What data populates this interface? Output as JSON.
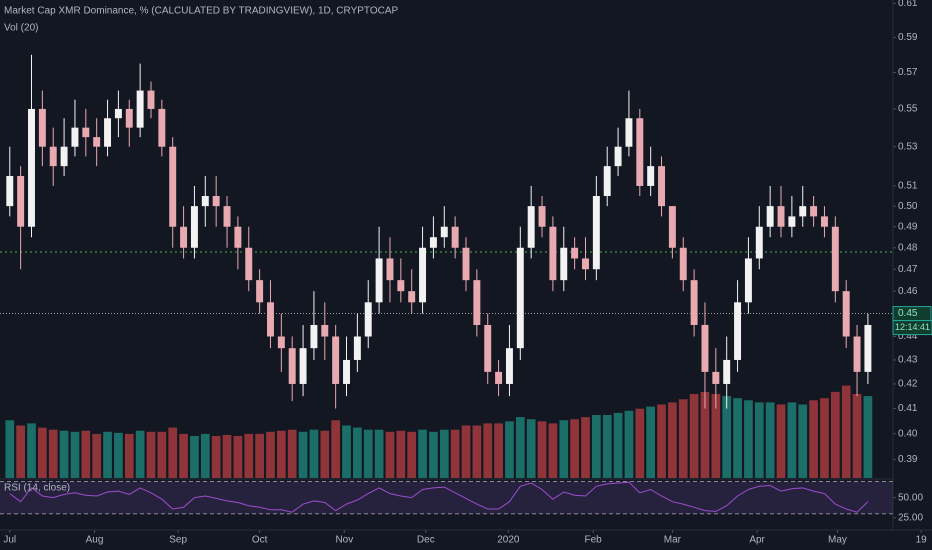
{
  "chart_data": [
    {
      "type": "candlestick",
      "title": "Market Cap XMR Dominance, % (CALCULATED BY TRADINGVIEW), 1D, CRYPTOCAP",
      "volume_label": "Vol (20)",
      "log_scale": true,
      "ylim": [
        0.383,
        0.612
      ],
      "yticks": [
        0.61,
        0.59,
        0.57,
        0.55,
        0.53,
        0.51,
        {
          "value": 0.5,
          "label": "0.50"
        },
        0.49,
        0.48,
        0.47,
        0.46,
        0.44,
        0.43,
        0.42,
        0.41,
        {
          "value": 0.4,
          "label": "0.40"
        },
        0.39
      ],
      "xlim": [
        -0.9,
        84.9
      ],
      "xticks": [
        {
          "value": 0,
          "label": "Jul"
        },
        {
          "value": 7.8,
          "label": "Aug"
        },
        {
          "value": 15.5,
          "label": "Sep"
        },
        {
          "value": 23,
          "label": "Oct"
        },
        {
          "value": 30.8,
          "label": "Nov"
        },
        {
          "value": 38.3,
          "label": "Dec"
        },
        {
          "value": 45.9,
          "label": "2020"
        },
        {
          "value": 53.7,
          "label": "Feb"
        },
        {
          "value": 61,
          "label": "Mar"
        },
        {
          "value": 68.8,
          "label": "Apr"
        },
        {
          "value": 76.2,
          "label": "May"
        },
        {
          "value": 83.9,
          "label": "19"
        }
      ],
      "last_price": 0.45,
      "countdown": "12:14:41",
      "level_line": 0.478,
      "up_color": "#f2f2f2",
      "down_color": "#e9a9b1",
      "volume_up_color": "#1f7f76",
      "volume_down_color": "#a63a3d",
      "vlim": [
        0,
        100
      ],
      "open": [
        0.5,
        0.515,
        0.49,
        0.55,
        0.53,
        0.52,
        0.53,
        0.54,
        0.535,
        0.53,
        0.545,
        0.55,
        0.54,
        0.56,
        0.55,
        0.53,
        0.49,
        0.48,
        0.5,
        0.505,
        0.5,
        0.49,
        0.48,
        0.465,
        0.455,
        0.44,
        0.435,
        0.42,
        0.435,
        0.445,
        0.44,
        0.42,
        0.43,
        0.44,
        0.455,
        0.475,
        0.465,
        0.46,
        0.455,
        0.48,
        0.485,
        0.49,
        0.48,
        0.465,
        0.445,
        0.425,
        0.42,
        0.435,
        0.48,
        0.5,
        0.49,
        0.465,
        0.48,
        0.475,
        0.47,
        0.505,
        0.52,
        0.53,
        0.545,
        0.51,
        0.52,
        0.5,
        0.48,
        0.465,
        0.445,
        0.425,
        0.42,
        0.43,
        0.455,
        0.475,
        0.49,
        0.5,
        0.49,
        0.495,
        0.5,
        0.495,
        0.49,
        0.46,
        0.44,
        0.425
      ],
      "high": [
        0.53,
        0.52,
        0.58,
        0.56,
        0.54,
        0.545,
        0.555,
        0.55,
        0.545,
        0.555,
        0.56,
        0.555,
        0.575,
        0.565,
        0.555,
        0.535,
        0.5,
        0.51,
        0.515,
        0.515,
        0.505,
        0.495,
        0.49,
        0.47,
        0.465,
        0.45,
        0.44,
        0.445,
        0.46,
        0.455,
        0.445,
        0.44,
        0.45,
        0.465,
        0.49,
        0.485,
        0.475,
        0.47,
        0.49,
        0.495,
        0.5,
        0.495,
        0.485,
        0.47,
        0.45,
        0.43,
        0.445,
        0.49,
        0.51,
        0.505,
        0.495,
        0.49,
        0.485,
        0.485,
        0.515,
        0.53,
        0.54,
        0.56,
        0.55,
        0.53,
        0.525,
        0.5,
        0.485,
        0.47,
        0.455,
        0.435,
        0.44,
        0.465,
        0.485,
        0.5,
        0.51,
        0.51,
        0.505,
        0.51,
        0.505,
        0.5,
        0.495,
        0.465,
        0.445,
        0.45
      ],
      "low": [
        0.495,
        0.47,
        0.485,
        0.52,
        0.51,
        0.515,
        0.525,
        0.525,
        0.52,
        0.525,
        0.535,
        0.53,
        0.535,
        0.545,
        0.525,
        0.48,
        0.475,
        0.475,
        0.49,
        0.49,
        0.48,
        0.47,
        0.46,
        0.45,
        0.435,
        0.425,
        0.413,
        0.415,
        0.43,
        0.43,
        0.41,
        0.415,
        0.425,
        0.435,
        0.45,
        0.455,
        0.455,
        0.45,
        0.45,
        0.475,
        0.48,
        0.475,
        0.46,
        0.44,
        0.42,
        0.415,
        0.415,
        0.43,
        0.475,
        0.485,
        0.46,
        0.46,
        0.47,
        0.465,
        0.465,
        0.5,
        0.515,
        0.525,
        0.505,
        0.505,
        0.495,
        0.475,
        0.46,
        0.44,
        0.41,
        0.41,
        0.41,
        0.425,
        0.45,
        0.47,
        0.485,
        0.485,
        0.485,
        0.49,
        0.49,
        0.485,
        0.455,
        0.435,
        0.415,
        0.42
      ],
      "close": [
        0.515,
        0.49,
        0.55,
        0.53,
        0.52,
        0.53,
        0.54,
        0.535,
        0.53,
        0.545,
        0.55,
        0.54,
        0.56,
        0.55,
        0.53,
        0.49,
        0.48,
        0.5,
        0.505,
        0.5,
        0.49,
        0.48,
        0.465,
        0.455,
        0.44,
        0.435,
        0.42,
        0.435,
        0.445,
        0.44,
        0.42,
        0.43,
        0.44,
        0.455,
        0.475,
        0.465,
        0.46,
        0.455,
        0.48,
        0.485,
        0.49,
        0.48,
        0.465,
        0.445,
        0.425,
        0.42,
        0.435,
        0.48,
        0.5,
        0.49,
        0.465,
        0.48,
        0.475,
        0.47,
        0.505,
        0.52,
        0.53,
        0.545,
        0.51,
        0.52,
        0.5,
        0.48,
        0.465,
        0.445,
        0.425,
        0.42,
        0.43,
        0.455,
        0.475,
        0.49,
        0.5,
        0.49,
        0.495,
        0.5,
        0.495,
        0.49,
        0.46,
        0.44,
        0.425,
        0.445
      ],
      "volume": [
        55,
        50,
        52,
        48,
        46,
        45,
        44,
        45,
        42,
        44,
        43,
        42,
        45,
        44,
        44,
        48,
        42,
        40,
        42,
        40,
        41,
        40,
        42,
        42,
        44,
        45,
        46,
        44,
        46,
        45,
        55,
        50,
        48,
        46,
        46,
        44,
        45,
        44,
        46,
        44,
        46,
        46,
        50,
        50,
        52,
        52,
        54,
        58,
        56,
        54,
        52,
        55,
        56,
        58,
        60,
        60,
        62,
        64,
        66,
        68,
        70,
        72,
        75,
        80,
        82,
        80,
        78,
        76,
        74,
        72,
        72,
        70,
        72,
        70,
        74,
        76,
        82,
        88,
        80,
        78
      ]
    },
    {
      "type": "line",
      "title": "RSI (14, close)",
      "color": "#9c4dcc",
      "ylim": [
        10,
        73
      ],
      "yticks": [
        {
          "value": 50,
          "label": "50.00"
        },
        {
          "value": 25,
          "label": "25.00"
        }
      ],
      "bands": [
        70,
        30
      ],
      "values": [
        55,
        45,
        62,
        52,
        50,
        54,
        56,
        53,
        52,
        57,
        58,
        54,
        62,
        56,
        48,
        36,
        38,
        50,
        52,
        49,
        46,
        44,
        40,
        38,
        35,
        35,
        32,
        42,
        46,
        44,
        34,
        42,
        47,
        55,
        62,
        55,
        52,
        50,
        60,
        62,
        63,
        56,
        49,
        42,
        36,
        36,
        45,
        64,
        68,
        60,
        48,
        57,
        53,
        52,
        64,
        67,
        68,
        69,
        56,
        60,
        52,
        45,
        42,
        38,
        34,
        33,
        40,
        52,
        60,
        64,
        65,
        58,
        61,
        62,
        58,
        55,
        42,
        36,
        32,
        45
      ]
    }
  ]
}
